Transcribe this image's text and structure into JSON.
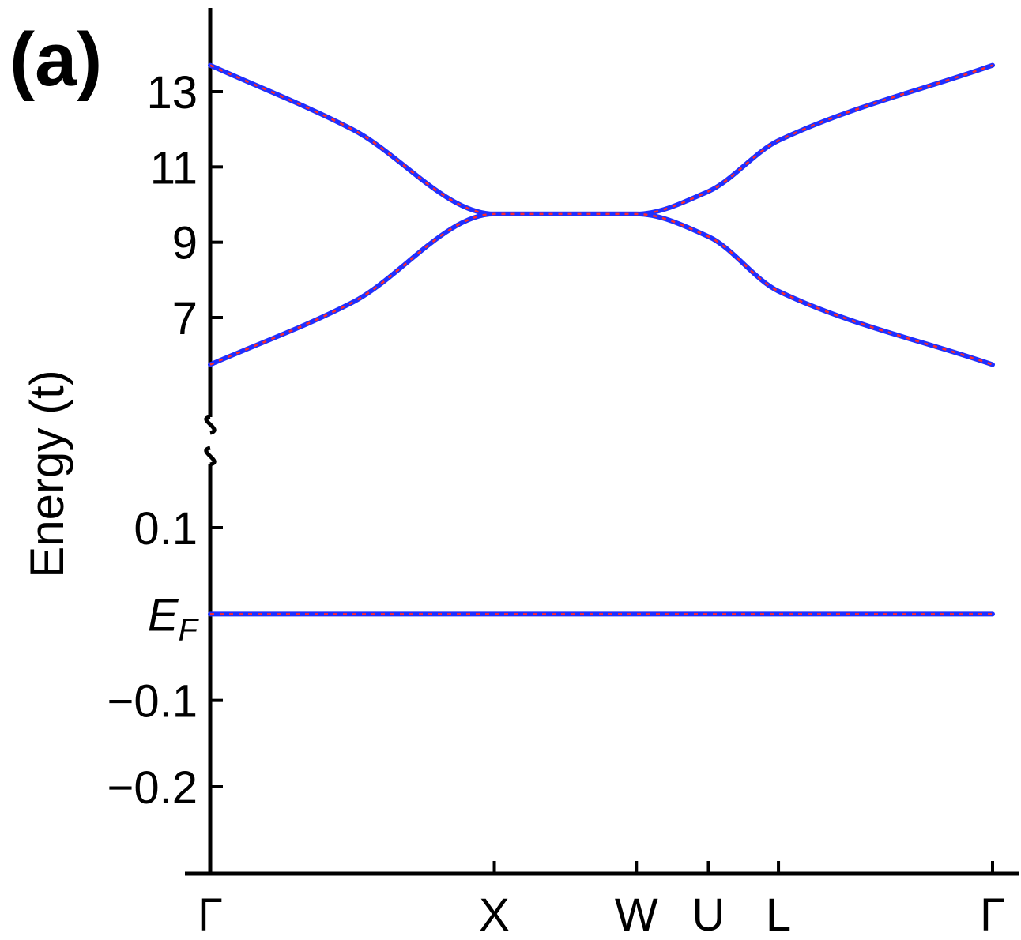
{
  "panel_label": "(a)",
  "chart_data": {
    "type": "line",
    "ylabel": "Energy (t)",
    "axis_break": true,
    "fermi_label_main": "E",
    "fermi_label_sub": "F",
    "x_ticks": [
      {
        "label": "Γ",
        "k": 0
      },
      {
        "label": "X",
        "k": 1
      },
      {
        "label": "W",
        "k": 1.5
      },
      {
        "label": "U",
        "k": 1.7536
      },
      {
        "label": "L",
        "k": 2.0
      },
      {
        "label": "Γ",
        "k": 2.7536
      }
    ],
    "upper_panel": {
      "yticks": [
        {
          "value": 13,
          "label": "13"
        },
        {
          "value": 11,
          "label": "11"
        },
        {
          "value": 9,
          "label": "9"
        },
        {
          "value": 7,
          "label": "7"
        }
      ],
      "ylim": [
        4.7,
        15.2
      ]
    },
    "lower_panel": {
      "yticks": [
        {
          "value": 0.1,
          "label": "0.1"
        },
        {
          "value": 0,
          "label": "E_F"
        },
        {
          "value": -0.1,
          "label": "−0.1"
        },
        {
          "value": -0.2,
          "label": "−0.2"
        }
      ],
      "ylim": [
        -0.3,
        0.19
      ]
    },
    "series": [
      {
        "band": "upper",
        "color": "#1f2fff",
        "overlay_color": "#ff2a2a",
        "points": [
          [
            0,
            13.7
          ],
          [
            0.5,
            12.0
          ],
          [
            1,
            9.75
          ],
          [
            1.5,
            9.75
          ],
          [
            1.7536,
            10.35
          ],
          [
            2.0,
            11.7
          ],
          [
            2.7536,
            13.7
          ]
        ]
      },
      {
        "band": "lower",
        "color": "#1f2fff",
        "overlay_color": "#ff2a2a",
        "points": [
          [
            0,
            5.75
          ],
          [
            0.5,
            7.4
          ],
          [
            1,
            9.75
          ],
          [
            1.5,
            9.75
          ],
          [
            1.7536,
            9.15
          ],
          [
            2.0,
            7.7
          ],
          [
            2.7536,
            5.75
          ]
        ]
      },
      {
        "band": "fermi",
        "color": "#1f2fff",
        "overlay_color": "#ff2a2a",
        "points": [
          [
            0,
            0
          ],
          [
            2.7536,
            0
          ]
        ]
      }
    ]
  }
}
